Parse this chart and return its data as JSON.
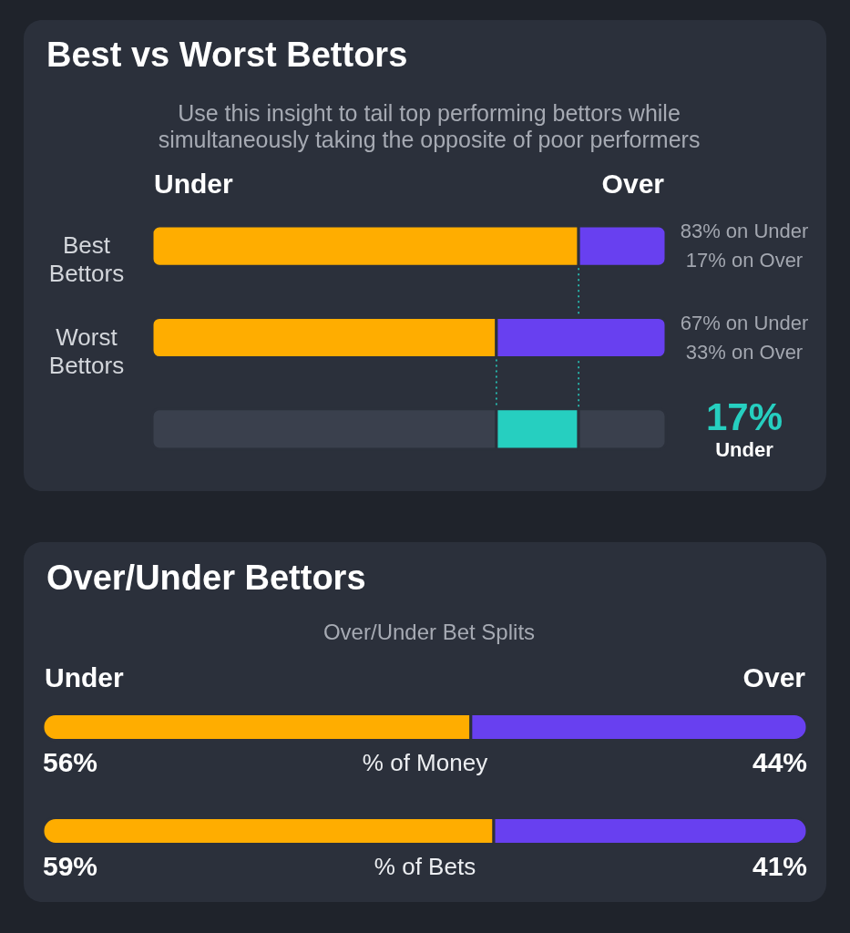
{
  "chart_data": [
    {
      "type": "bar",
      "orientation": "horizontal",
      "stacked": true,
      "title": "Best vs Worst Bettors",
      "subtitle": "Use this insight to tail top performing bettors while simultaneously taking the opposite of poor performers",
      "categories": [
        "Best Bettors",
        "Worst Bettors",
        null
      ],
      "series": [
        {
          "name": "Under",
          "color": "#ffad00",
          "values": [
            83,
            67,
            null
          ],
          "value_labels": [
            "83% on Under",
            "67% on Under",
            null
          ]
        },
        {
          "name": "Over",
          "color": "#6840f0",
          "values": [
            17,
            33,
            null
          ],
          "value_labels": [
            "17% on Over",
            "33% on Over",
            null
          ]
        },
        {
          "color": "#3a404d",
          "values": [
            null,
            null,
            67
          ]
        },
        {
          "color": "#26cfc0",
          "values": [
            null,
            null,
            16
          ]
        },
        {
          "color": "#3a404d",
          "values": [
            null,
            null,
            17
          ]
        }
      ],
      "xlim": [
        0,
        100
      ],
      "tick_labels": false,
      "ref_lines": [
        {
          "axis": "x",
          "value": 83,
          "color": "#26cfc0",
          "line_style": "dotted"
        },
        {
          "axis": "x",
          "value": 67,
          "color": "#26cfc0",
          "line_style": "dotted"
        }
      ],
      "annotations": [
        "17%",
        "Under"
      ]
    },
    {
      "type": "bar",
      "orientation": "horizontal",
      "stacked": true,
      "title": "Over/Under Bettors",
      "subtitle": "Over/Under Bet Splits",
      "categories": [
        "% of Money",
        "% of Bets"
      ],
      "series": [
        {
          "name": "Under",
          "color": "#ffad00",
          "values": [
            56,
            59
          ],
          "value_labels": [
            "56%",
            "59%"
          ]
        },
        {
          "name": "Over",
          "color": "#6840f0",
          "values": [
            44,
            41
          ],
          "value_labels": [
            "44%",
            "41%"
          ]
        }
      ],
      "xlim": [
        0,
        100
      ],
      "tick_labels": false
    }
  ]
}
